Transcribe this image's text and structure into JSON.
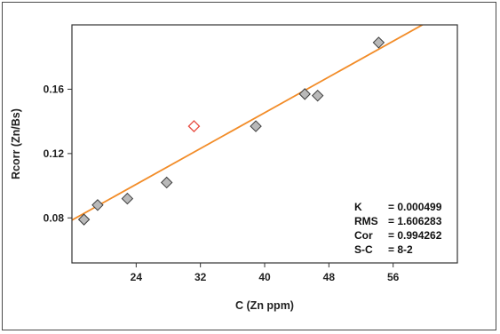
{
  "chart_data": {
    "type": "scatter",
    "title": "",
    "xlabel": "C (Zn ppm)",
    "ylabel": "Rcorr (Zn/Bs)",
    "xlim": [
      16,
      64
    ],
    "ylim": [
      0.052,
      0.2
    ],
    "xticks": [
      24,
      32,
      40,
      48,
      56
    ],
    "yticks": [
      0.08,
      0.12,
      0.16
    ],
    "xtick_labels": [
      "24",
      "32",
      "40",
      "48",
      "56"
    ],
    "ytick_labels": [
      "0.08",
      "0.12",
      "0.16"
    ],
    "grid": false,
    "series": [
      {
        "marker": "diamond-filled",
        "color": "#b9b9b9",
        "x": [
          17.5,
          19.2,
          22.9,
          27.8,
          38.9,
          45.0,
          46.6,
          54.2
        ],
        "y": [
          0.079,
          0.088,
          0.092,
          0.102,
          0.137,
          0.157,
          0.156,
          0.189
        ]
      },
      {
        "marker": "diamond-open",
        "color": "#e84a3f",
        "x": [
          31.2
        ],
        "y": [
          0.137
        ]
      }
    ],
    "fit_line": {
      "color": "#f28c28",
      "x": [
        12.0,
        60.0
      ],
      "y": [
        0.0675,
        0.201
      ]
    },
    "stats": [
      {
        "key": "K",
        "sep": "=",
        "value": "0.000499"
      },
      {
        "key": "RMS",
        "sep": "=",
        "value": "1.606283"
      },
      {
        "key": "Cor",
        "sep": "=",
        "value": "0.994262"
      },
      {
        "key": "S-C",
        "sep": "=",
        "value": "8-2"
      }
    ]
  }
}
